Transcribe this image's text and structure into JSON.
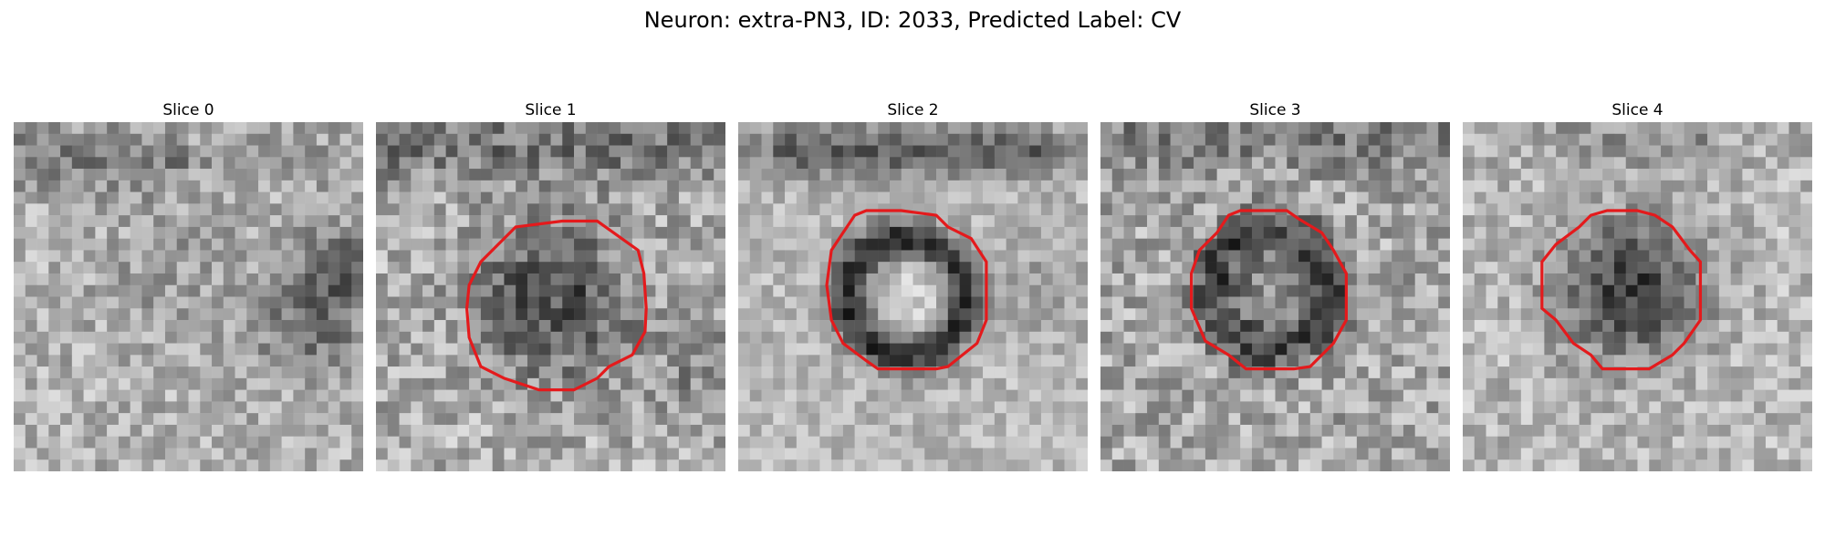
{
  "figure": {
    "title": "Neuron: extra-PN3, ID: 2033, Predicted Label: CV",
    "outline_color": "#e41a1c"
  },
  "panels": [
    {
      "title": "Slice 0",
      "has_outline": false
    },
    {
      "title": "Slice 1",
      "has_outline": true
    },
    {
      "title": "Slice 2",
      "has_outline": true
    },
    {
      "title": "Slice 3",
      "has_outline": true
    },
    {
      "title": "Slice 4",
      "has_outline": true
    }
  ]
}
